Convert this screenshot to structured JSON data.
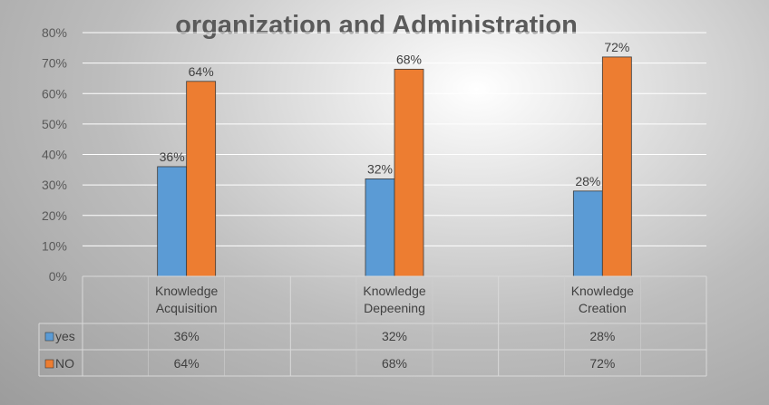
{
  "chart_data": {
    "type": "bar",
    "title": "organization and Administration",
    "categories": [
      "Knowledge Acquisition",
      "Knowledge Depeening",
      "Knowledge Creation"
    ],
    "category_lines": [
      [
        "Knowledge",
        "Acquisition"
      ],
      [
        "Knowledge",
        "Depeening"
      ],
      [
        "Knowledge",
        "Creation"
      ]
    ],
    "series": [
      {
        "name": "yes",
        "values": [
          36,
          32,
          28
        ],
        "labels": [
          "36%",
          "32%",
          "28%"
        ],
        "color": "#5b9bd5"
      },
      {
        "name": "NO",
        "values": [
          64,
          68,
          72
        ],
        "labels": [
          "64%",
          "68%",
          "72%"
        ],
        "color": "#ed7d31"
      }
    ],
    "ylim": [
      0,
      80
    ],
    "yticks": [
      "0%",
      "10%",
      "20%",
      "30%",
      "40%",
      "50%",
      "60%",
      "70%",
      "80%"
    ],
    "grid": true,
    "legend": "data-table",
    "data_table": true
  }
}
